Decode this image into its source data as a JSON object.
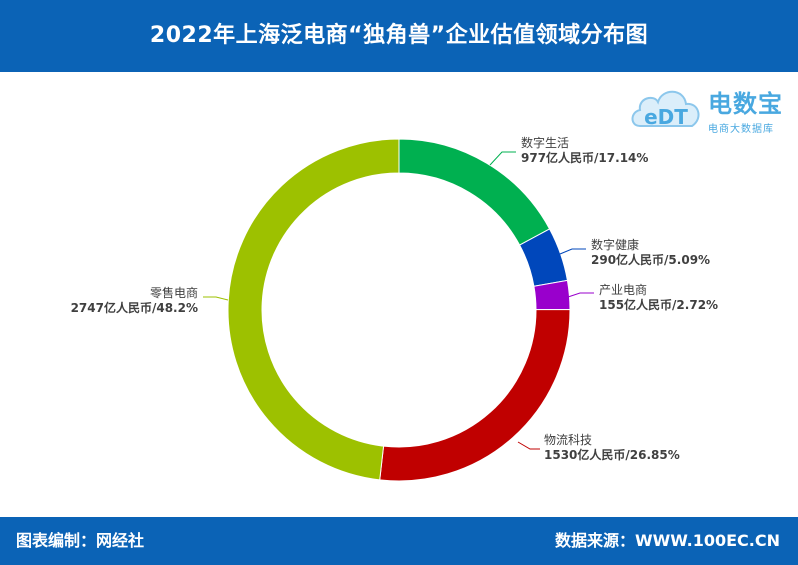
{
  "header": {
    "title": "2022年上海泛电商“独角兽”企业估值领域分布图"
  },
  "footer": {
    "left": "图表编制：网经社",
    "right": "数据来源：WWW.100EC.CN"
  },
  "logo": {
    "name": "电数宝",
    "subtitle": "电商大数据库",
    "mark": "eDT"
  },
  "chart_data": {
    "type": "pie",
    "subtype": "donut",
    "unit": "亿人民币",
    "slices": [
      {
        "name": "数字生活",
        "value": 977,
        "percent": 17.14,
        "label": "977亿人民币/17.14%",
        "color": "#00b050"
      },
      {
        "name": "数字健康",
        "value": 290,
        "percent": 5.09,
        "label": "290亿人民币/5.09%",
        "color": "#0047bb"
      },
      {
        "name": "产业电商",
        "value": 155,
        "percent": 2.72,
        "label": "155亿人民币/2.72%",
        "color": "#9900cc"
      },
      {
        "name": "物流科技",
        "value": 1530,
        "percent": 26.85,
        "label": "1530亿人民币/26.85%",
        "color": "#c00000"
      },
      {
        "name": "零售电商",
        "value": 2747,
        "percent": 48.2,
        "label": "2747亿人民币/48.2%",
        "color": "#9dc100"
      }
    ]
  }
}
